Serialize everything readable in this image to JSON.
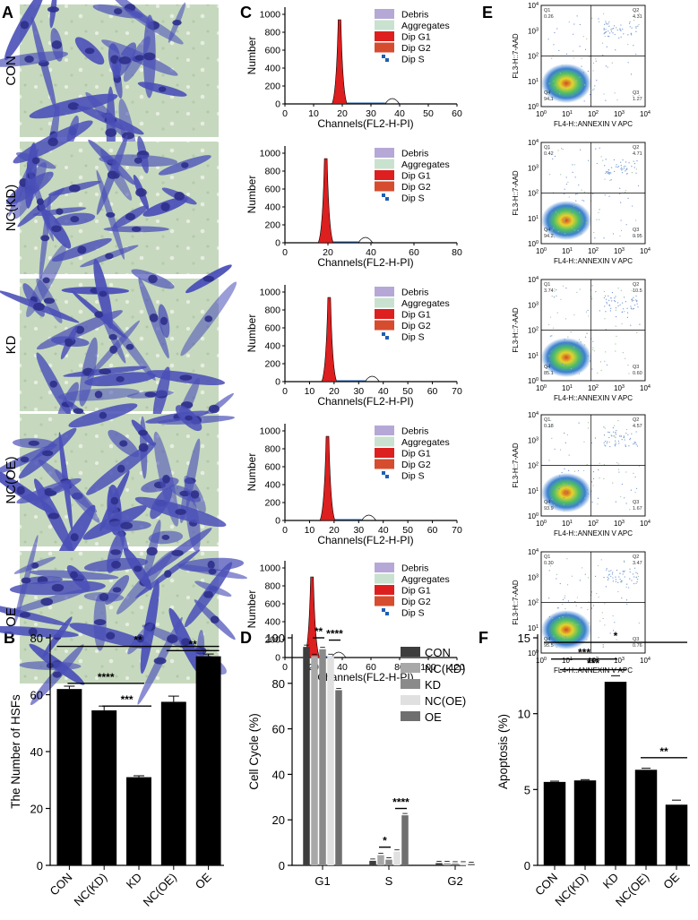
{
  "panel_letters": {
    "a": "A",
    "b": "B",
    "c": "C",
    "d": "D",
    "e": "E",
    "f": "F"
  },
  "colors": {
    "stain": "#4a4fb8",
    "bg_cell": "#c9dcc0",
    "red": "#dd1f1f",
    "debris": "#b6a8d6",
    "aggregates": "#c9e2cf",
    "dipg2": "#d64c2f",
    "dips": "#1e5fb4"
  },
  "panel_a": {
    "rows": [
      "CON",
      "NC(KD)",
      "KD",
      "NC(OE)",
      "OE"
    ]
  },
  "panel_c": {
    "legend": [
      "Debris",
      "Aggregates",
      "Dip G1",
      "Dip G2",
      "Dip S"
    ],
    "ylabel": "Number",
    "xlabel": "Channels(FL2-H-PI)",
    "yticks": [
      "0",
      "200",
      "400",
      "600",
      "800",
      "1000"
    ],
    "histograms": [
      {
        "xticks": [
          "0",
          "10",
          "20",
          "30",
          "40",
          "50",
          "60"
        ]
      },
      {
        "xticks": [
          "0",
          "20",
          "40",
          "60",
          "80"
        ]
      },
      {
        "xticks": [
          "0",
          "10",
          "20",
          "30",
          "40",
          "50",
          "60",
          "70"
        ]
      },
      {
        "xticks": [
          "0",
          "10",
          "20",
          "30",
          "40",
          "50",
          "60",
          "70"
        ]
      },
      {
        "xticks": [
          "0",
          "20",
          "40",
          "60",
          "80",
          "100",
          "120"
        ]
      }
    ]
  },
  "panel_e": {
    "ylabel": "FL3-H::7-AAD",
    "xlabel": "FL4-H::ANNEXIN V APC",
    "ticks": [
      "10^0",
      "10^1",
      "10^2",
      "10^3",
      "10^4"
    ],
    "quadrants": [
      {
        "q1": "Q1",
        "q1v": "0.26",
        "q2": "Q2",
        "q2v": "4.31",
        "q3": "Q3",
        "q3v": "1.27",
        "q4": "Q4",
        "q4v": "94.1"
      },
      {
        "q1": "Q1",
        "q1v": "0.42",
        "q2": "Q2",
        "q2v": "4.71",
        "q3": "Q3",
        "q3v": "0.95",
        "q4": "Q4",
        "q4v": "94.2"
      },
      {
        "q1": "Q1",
        "q1v": "3.74",
        "q2": "Q2",
        "q2v": "10.5",
        "q3": "Q3",
        "q3v": "0.60",
        "q4": "Q4",
        "q4v": "85.1"
      },
      {
        "q1": "Q1",
        "q1v": "0.18",
        "q2": "Q2",
        "q2v": "4.57",
        "q3": "Q3",
        "q3v": "1.67",
        "q4": "Q4",
        "q4v": "93.9"
      },
      {
        "q1": "Q1",
        "q1v": "0.30",
        "q2": "Q2",
        "q2v": "3.47",
        "q3": "Q3",
        "q3v": "0.76",
        "q4": "Q4",
        "q4v": "95.5"
      }
    ]
  },
  "chart_data": [
    {
      "type": "bar",
      "panel": "B",
      "categories": [
        "CON",
        "NC(KD)",
        "KD",
        "NC(OE)",
        "OE"
      ],
      "values": [
        62,
        54.5,
        31,
        57.5,
        73.5
      ],
      "errors": [
        1,
        1.5,
        0.5,
        2,
        0.8
      ],
      "ylabel": "The Number of HSFs",
      "ylim": [
        0,
        80
      ],
      "yticks": [
        "0",
        "20",
        "40",
        "60",
        "80"
      ],
      "significance": [
        {
          "from": 0,
          "to": 4,
          "label": "**"
        },
        {
          "from": 1,
          "to": 2,
          "label": "****"
        },
        {
          "from": 1,
          "to": 2,
          "label": "***"
        },
        {
          "from": 3,
          "to": 4,
          "label": "**"
        }
      ]
    },
    {
      "type": "bar",
      "panel": "D",
      "categories": [
        "G1",
        "S",
        "G2"
      ],
      "series": [
        {
          "name": "CON",
          "values": [
            96,
            2,
            1
          ],
          "color": "#3d3d3d"
        },
        {
          "name": "NC(KD)",
          "values": [
            92,
            4.5,
            1
          ],
          "color": "#a8a8a8"
        },
        {
          "name": "KD",
          "values": [
            95,
            2.5,
            0.8
          ],
          "color": "#8a8a8a"
        },
        {
          "name": "NC(OE)",
          "values": [
            92,
            6,
            0.8
          ],
          "color": "#e0e0e0"
        },
        {
          "name": "OE",
          "values": [
            77,
            22,
            0.6
          ],
          "color": "#6f6f6f"
        }
      ],
      "ylabel": "Cell Cycle (%)",
      "ylim": [
        0,
        100
      ],
      "yticks": [
        "0",
        "20",
        "40",
        "60",
        "80",
        "100"
      ],
      "significance": [
        "**",
        "****",
        "*",
        "****"
      ]
    },
    {
      "type": "bar",
      "panel": "F",
      "categories": [
        "CON",
        "NC(KD)",
        "KD",
        "NC(OE)",
        "OE"
      ],
      "values": [
        5.5,
        5.6,
        12.1,
        6.3,
        4.0
      ],
      "errors": [
        0.05,
        0.05,
        0.4,
        0.1,
        0.3
      ],
      "ylabel": "Apoptosis (%)",
      "ylim": [
        0,
        15
      ],
      "yticks": [
        "0",
        "5",
        "10",
        "15"
      ],
      "significance": [
        "*",
        "***",
        "***",
        "**"
      ]
    }
  ]
}
